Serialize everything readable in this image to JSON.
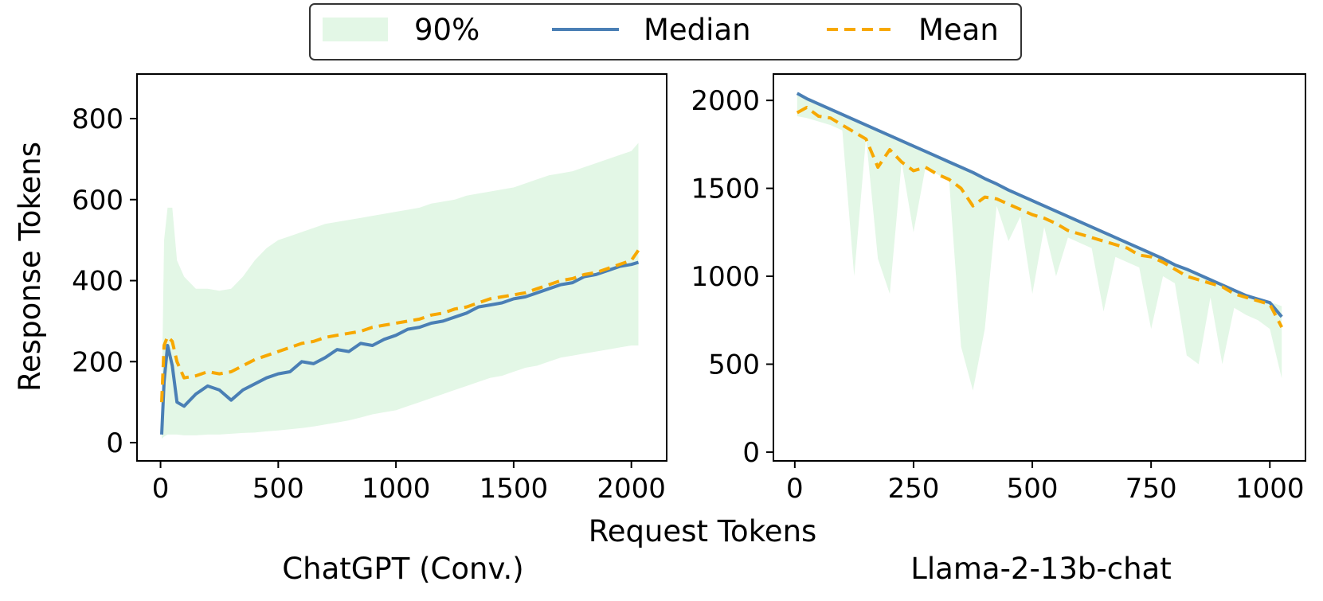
{
  "legend": {
    "band_label": "90%",
    "median_label": "Median",
    "mean_label": "Mean"
  },
  "colors": {
    "band": "#e3f7e6",
    "median": "#4a7fb5",
    "mean": "#f7a800"
  },
  "shared_xlabel": "Request Tokens",
  "chart_data": [
    {
      "type": "line",
      "title": "ChatGPT (Conv.)",
      "xlabel": "Request Tokens",
      "ylabel": "Response Tokens",
      "xlim": [
        -100,
        2150
      ],
      "ylim": [
        -45,
        910
      ],
      "xticks": [
        0,
        500,
        1000,
        1500,
        2000
      ],
      "yticks": [
        0,
        200,
        400,
        600,
        800
      ],
      "x": [
        5,
        15,
        30,
        50,
        70,
        100,
        150,
        200,
        250,
        300,
        350,
        400,
        450,
        500,
        550,
        600,
        650,
        700,
        750,
        800,
        850,
        900,
        950,
        1000,
        1050,
        1100,
        1150,
        1200,
        1250,
        1300,
        1350,
        1400,
        1450,
        1500,
        1550,
        1600,
        1650,
        1700,
        1750,
        1800,
        1850,
        1900,
        1950,
        2000,
        2030
      ],
      "series": [
        {
          "name": "Median",
          "values": [
            20,
            150,
            240,
            190,
            100,
            90,
            120,
            140,
            130,
            105,
            130,
            145,
            160,
            170,
            175,
            200,
            195,
            210,
            230,
            225,
            245,
            240,
            255,
            265,
            280,
            285,
            295,
            300,
            310,
            320,
            335,
            340,
            345,
            355,
            360,
            370,
            380,
            390,
            395,
            410,
            415,
            425,
            435,
            440,
            445
          ]
        },
        {
          "name": "Mean",
          "values": [
            100,
            240,
            262,
            250,
            200,
            160,
            165,
            175,
            170,
            175,
            190,
            205,
            215,
            225,
            235,
            245,
            250,
            260,
            265,
            270,
            275,
            285,
            290,
            295,
            300,
            305,
            315,
            320,
            330,
            335,
            345,
            355,
            360,
            365,
            370,
            380,
            390,
            400,
            405,
            415,
            420,
            430,
            440,
            450,
            475
          ]
        },
        {
          "name": "90%",
          "lower": [
            10,
            15,
            20,
            20,
            20,
            18,
            18,
            20,
            20,
            22,
            24,
            25,
            28,
            30,
            33,
            36,
            40,
            45,
            50,
            55,
            62,
            70,
            75,
            80,
            90,
            100,
            110,
            120,
            130,
            140,
            150,
            160,
            165,
            175,
            185,
            190,
            200,
            210,
            215,
            220,
            225,
            230,
            235,
            240,
            240
          ],
          "upper": [
            100,
            500,
            580,
            580,
            450,
            410,
            380,
            380,
            375,
            380,
            410,
            450,
            480,
            500,
            510,
            520,
            530,
            540,
            545,
            550,
            555,
            560,
            565,
            570,
            575,
            580,
            590,
            595,
            600,
            610,
            615,
            620,
            625,
            630,
            640,
            650,
            660,
            665,
            670,
            680,
            690,
            700,
            710,
            720,
            740
          ]
        }
      ]
    },
    {
      "type": "line",
      "title": "Llama-2-13b-chat",
      "xlabel": "Request Tokens",
      "ylabel": "",
      "xlim": [
        -45,
        1075
      ],
      "ylim": [
        -50,
        2150
      ],
      "xticks": [
        0,
        250,
        500,
        750,
        1000
      ],
      "yticks": [
        0,
        500,
        1000,
        1500,
        2000
      ],
      "x": [
        5,
        25,
        50,
        75,
        100,
        125,
        150,
        175,
        200,
        225,
        250,
        275,
        300,
        325,
        350,
        375,
        400,
        425,
        450,
        475,
        500,
        525,
        550,
        575,
        600,
        625,
        650,
        675,
        700,
        725,
        750,
        775,
        800,
        825,
        850,
        875,
        900,
        925,
        950,
        975,
        1000,
        1025
      ],
      "series": [
        {
          "name": "Median",
          "values": [
            2040,
            2010,
            1980,
            1950,
            1920,
            1890,
            1860,
            1830,
            1800,
            1770,
            1740,
            1710,
            1680,
            1650,
            1620,
            1590,
            1555,
            1525,
            1490,
            1460,
            1430,
            1400,
            1370,
            1340,
            1310,
            1280,
            1250,
            1220,
            1190,
            1160,
            1130,
            1100,
            1065,
            1040,
            1010,
            980,
            950,
            920,
            890,
            870,
            850,
            770
          ]
        },
        {
          "name": "Mean",
          "values": [
            1930,
            1960,
            1910,
            1900,
            1860,
            1820,
            1780,
            1620,
            1720,
            1650,
            1600,
            1620,
            1580,
            1550,
            1500,
            1400,
            1450,
            1440,
            1410,
            1380,
            1350,
            1330,
            1300,
            1260,
            1240,
            1220,
            1200,
            1180,
            1160,
            1120,
            1110,
            1080,
            1040,
            1000,
            980,
            960,
            940,
            900,
            880,
            860,
            840,
            710
          ]
        },
        {
          "name": "90%",
          "lower": [
            1910,
            1900,
            1880,
            1860,
            1830,
            1000,
            1790,
            1100,
            900,
            1650,
            1250,
            1620,
            1580,
            1540,
            600,
            350,
            700,
            1400,
            1200,
            1340,
            900,
            1280,
            1000,
            1220,
            1190,
            1160,
            800,
            1110,
            1080,
            1050,
            700,
            1000,
            960,
            550,
            500,
            880,
            500,
            820,
            780,
            750,
            700,
            420
          ],
          "upper": [
            2045,
            2015,
            1985,
            1955,
            1925,
            1895,
            1865,
            1835,
            1805,
            1775,
            1745,
            1715,
            1685,
            1655,
            1625,
            1595,
            1560,
            1530,
            1495,
            1465,
            1435,
            1405,
            1375,
            1345,
            1315,
            1285,
            1255,
            1225,
            1195,
            1165,
            1135,
            1105,
            1070,
            1045,
            1015,
            985,
            955,
            925,
            895,
            875,
            855,
            830
          ]
        }
      ]
    }
  ]
}
